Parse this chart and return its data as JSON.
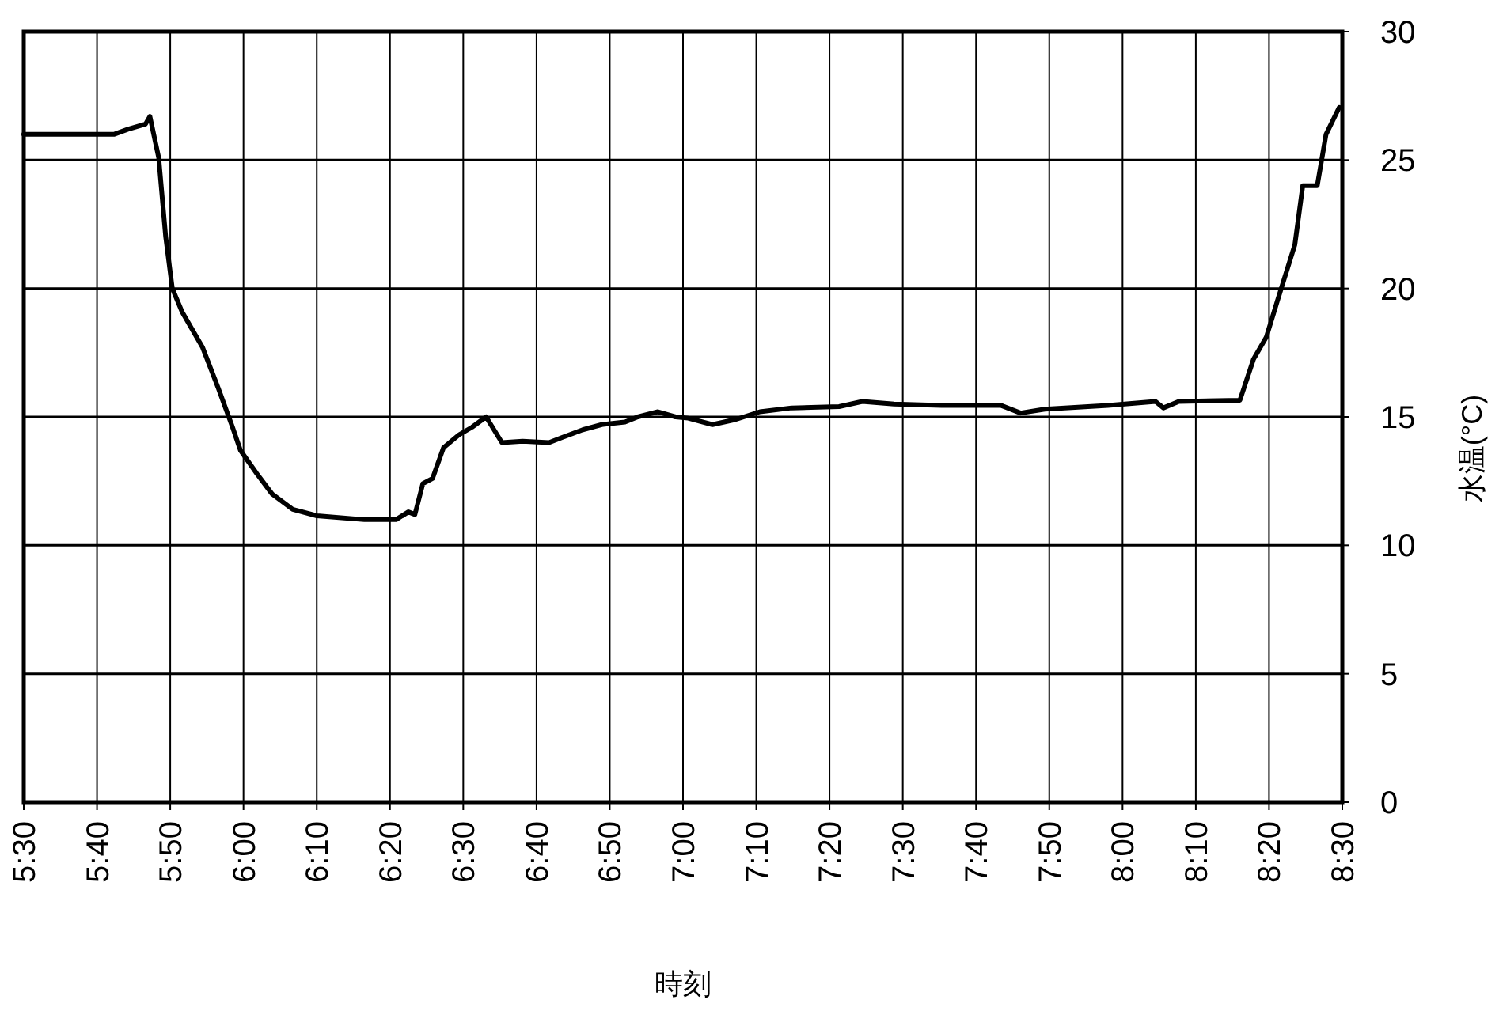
{
  "chart_data": {
    "type": "line",
    "xlabel": "時刻",
    "ylabel": "水温(°C)",
    "x": [
      5.5,
      5.705,
      5.737,
      5.777,
      5.787,
      5.807,
      5.823,
      5.838,
      5.86,
      5.907,
      5.943,
      5.975,
      5.993,
      6.03,
      6.065,
      6.112,
      6.167,
      6.275,
      6.347,
      6.375,
      6.39,
      6.408,
      6.43,
      6.455,
      6.49,
      6.52,
      6.552,
      6.588,
      6.635,
      6.695,
      6.725,
      6.772,
      6.815,
      6.868,
      6.897,
      6.943,
      6.983,
      7.012,
      7.067,
      7.12,
      7.175,
      7.247,
      7.355,
      7.408,
      7.48,
      7.588,
      7.66,
      7.723,
      7.768,
      7.823,
      7.967,
      8.075,
      8.093,
      8.128,
      8.267,
      8.298,
      8.327,
      8.352,
      8.392,
      8.41,
      8.443,
      8.463,
      8.493
    ],
    "series": [
      {
        "color": "#000000",
        "values": [
          26.0,
          26.0,
          26.2,
          26.4,
          26.7,
          25.1,
          22.0,
          20.0,
          19.1,
          17.7,
          16.1,
          14.6,
          13.7,
          12.8,
          12.0,
          11.4,
          11.15,
          11.0,
          11.0,
          11.3,
          11.2,
          12.4,
          12.6,
          13.8,
          14.3,
          14.6,
          15.0,
          14.0,
          14.05,
          14.0,
          14.2,
          14.5,
          14.7,
          14.8,
          15.0,
          15.2,
          15.0,
          14.95,
          14.7,
          14.9,
          15.2,
          15.35,
          15.4,
          15.6,
          15.5,
          15.45,
          15.45,
          15.45,
          15.15,
          15.3,
          15.45,
          15.6,
          15.35,
          15.6,
          15.65,
          17.25,
          18.1,
          19.5,
          21.7,
          24.0,
          24.0,
          26.0,
          27.05
        ]
      }
    ],
    "xlim": [
      5.5,
      8.5
    ],
    "xticks": [
      {
        "value": 5.5,
        "label": "5:30"
      },
      {
        "value": 5.6667,
        "label": "5:40"
      },
      {
        "value": 5.8333,
        "label": "5:50"
      },
      {
        "value": 6,
        "label": "6:00"
      },
      {
        "value": 6.1667,
        "label": "6:10"
      },
      {
        "value": 6.3333,
        "label": "6:20"
      },
      {
        "value": 6.5,
        "label": "6:30"
      },
      {
        "value": 6.6667,
        "label": "6:40"
      },
      {
        "value": 6.8333,
        "label": "6:50"
      },
      {
        "value": 7,
        "label": "7:00"
      },
      {
        "value": 7.1667,
        "label": "7:10"
      },
      {
        "value": 7.3333,
        "label": "7:20"
      },
      {
        "value": 7.5,
        "label": "7:30"
      },
      {
        "value": 7.6667,
        "label": "7:40"
      },
      {
        "value": 7.8333,
        "label": "7:50"
      },
      {
        "value": 8,
        "label": "8:00"
      },
      {
        "value": 8.1667,
        "label": "8:10"
      },
      {
        "value": 8.3333,
        "label": "8:20"
      },
      {
        "value": 8.5,
        "label": "8:30"
      }
    ],
    "ylim": [
      0,
      30
    ],
    "yticks": [
      0,
      5,
      10,
      15,
      20,
      25,
      30
    ],
    "grid": true
  }
}
